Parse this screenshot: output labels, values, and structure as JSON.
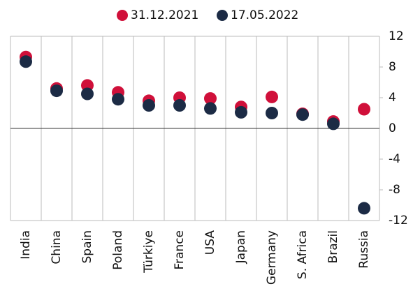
{
  "chart_data": {
    "type": "dot",
    "categories": [
      "India",
      "China",
      "Spain",
      "Poland",
      "Türkiye",
      "France",
      "USA",
      "Japan",
      "Germany",
      "S. Africa",
      "Brazil",
      "Russia"
    ],
    "series": [
      {
        "name": "31.12.2021",
        "color": "#d0103a",
        "values": [
          9.3,
          5.2,
          5.6,
          4.7,
          3.6,
          4.0,
          3.9,
          2.8,
          4.1,
          1.9,
          0.9,
          2.5
        ]
      },
      {
        "name": "17.05.2022",
        "color": "#1c2b45",
        "values": [
          8.7,
          4.9,
          4.5,
          3.8,
          3.0,
          3.0,
          2.6,
          2.1,
          2.0,
          1.8,
          0.6,
          -10.4
        ]
      }
    ],
    "ylim": [
      -12,
      12
    ],
    "yticks": [
      -12,
      -8,
      -4,
      0,
      4,
      8,
      12
    ],
    "legend": "top"
  }
}
